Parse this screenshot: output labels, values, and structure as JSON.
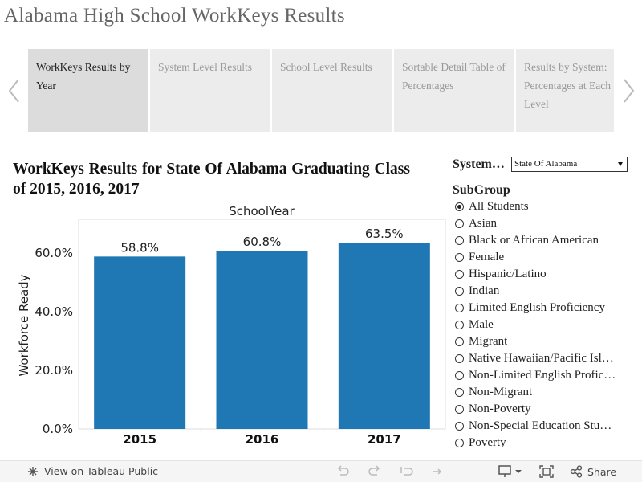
{
  "page": {
    "title": "Alabama High School WorkKeys Results"
  },
  "nav": {
    "tabs": [
      {
        "label": "WorkKeys Results by Year",
        "active": true
      },
      {
        "label": "System Level Results",
        "active": false
      },
      {
        "label": "School Level Results",
        "active": false
      },
      {
        "label": "Sortable Detail Table of Percentages",
        "active": false
      },
      {
        "label": "Results by System: Percentages at Each Level",
        "active": false
      }
    ]
  },
  "filters": {
    "system_label": "System…",
    "system_value": "State Of Alabama",
    "subgroup_label": "SubGroup",
    "subgroups": [
      {
        "label": "All Students",
        "selected": true
      },
      {
        "label": "Asian",
        "selected": false
      },
      {
        "label": "Black or African American",
        "selected": false
      },
      {
        "label": "Female",
        "selected": false
      },
      {
        "label": "Hispanic/Latino",
        "selected": false
      },
      {
        "label": "Indian",
        "selected": false
      },
      {
        "label": "Limited English Proficiency",
        "selected": false
      },
      {
        "label": "Male",
        "selected": false
      },
      {
        "label": "Migrant",
        "selected": false
      },
      {
        "label": "Native Hawaiian/Pacific Isl…",
        "selected": false
      },
      {
        "label": "Non-Limited English Profic…",
        "selected": false
      },
      {
        "label": "Non-Migrant",
        "selected": false
      },
      {
        "label": "Non-Poverty",
        "selected": false
      },
      {
        "label": "Non-Special Education Stu…",
        "selected": false
      },
      {
        "label": "Poverty",
        "selected": false
      }
    ]
  },
  "chart_data": {
    "type": "bar",
    "title": "WorkKeys Results for State Of Alabama Graduating Class of 2015, 2016, 2017",
    "column_header": "SchoolYear",
    "categories": [
      "2015",
      "2016",
      "2017"
    ],
    "values": [
      58.8,
      60.8,
      63.5
    ],
    "value_labels": [
      "58.8%",
      "60.8%",
      "63.5%"
    ],
    "ylabel": "Workforce Ready",
    "xlabel": "",
    "ylim": [
      0,
      71.5
    ],
    "yticks": [
      0,
      20,
      40,
      60
    ],
    "ytick_labels": [
      "0.0%",
      "20.0%",
      "40.0%",
      "60.0%"
    ],
    "bar_color": "#1f77b4",
    "grid": false
  },
  "footer": {
    "view_label": "View on Tableau Public",
    "share_label": "Share"
  }
}
